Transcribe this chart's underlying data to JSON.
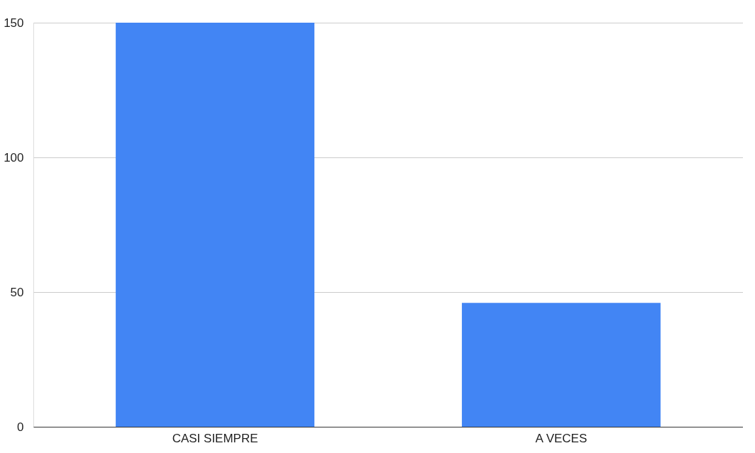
{
  "chart_data": {
    "type": "bar",
    "categories": [
      "CASI SIEMPRE",
      "A VECES"
    ],
    "values": [
      150,
      46
    ],
    "color": "#4285f4",
    "ylim": [
      0,
      150
    ],
    "yticks": [
      0,
      50,
      100,
      150
    ],
    "grid": "y"
  }
}
